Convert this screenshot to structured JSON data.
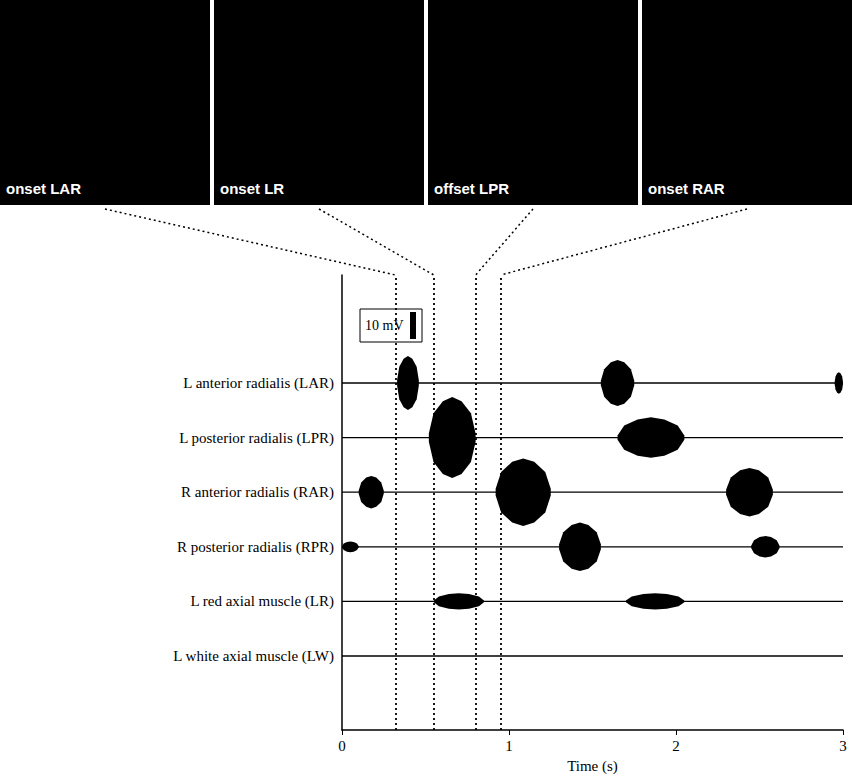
{
  "chart_data": {
    "type": "emg",
    "xlabel": "Time (s)",
    "xlim": [
      0,
      3
    ],
    "xticks": [
      0,
      1,
      2,
      3
    ],
    "tick_labels": "x",
    "ylim": [
      -20,
      20
    ],
    "color": "#000000",
    "scale_bar": {
      "value": 10,
      "label": "10 mV"
    },
    "markers": [
      {
        "x": 0.32,
        "label": "onset LAR"
      },
      {
        "x": 0.55,
        "label": "onset LR"
      },
      {
        "x": 0.8,
        "label": "offset LPR"
      },
      {
        "x": 0.95,
        "label": "onset RAR"
      }
    ],
    "series": [
      {
        "name": "L anterior radialis (LAR)",
        "bursts": [
          [
            0.33,
            0.46,
            20
          ],
          [
            1.55,
            1.75,
            17
          ],
          [
            2.95,
            3.0,
            8
          ]
        ]
      },
      {
        "name": "L posterior radialis (LPR)",
        "bursts": [
          [
            0.52,
            0.8,
            30
          ],
          [
            1.65,
            2.05,
            15
          ]
        ]
      },
      {
        "name": "R anterior radialis (RAR)",
        "bursts": [
          [
            0.1,
            0.25,
            12
          ],
          [
            0.92,
            1.25,
            25
          ],
          [
            2.3,
            2.58,
            18
          ]
        ]
      },
      {
        "name": "R posterior radialis (RPR)",
        "bursts": [
          [
            0.0,
            0.1,
            4
          ],
          [
            1.3,
            1.55,
            18
          ],
          [
            2.45,
            2.62,
            8
          ]
        ]
      },
      {
        "name": "L red axial muscle (LR)",
        "bursts": [
          [
            0.55,
            0.85,
            6
          ],
          [
            1.7,
            2.05,
            6
          ]
        ]
      },
      {
        "name": "L white axial muscle (LW)",
        "bursts": []
      }
    ]
  }
}
